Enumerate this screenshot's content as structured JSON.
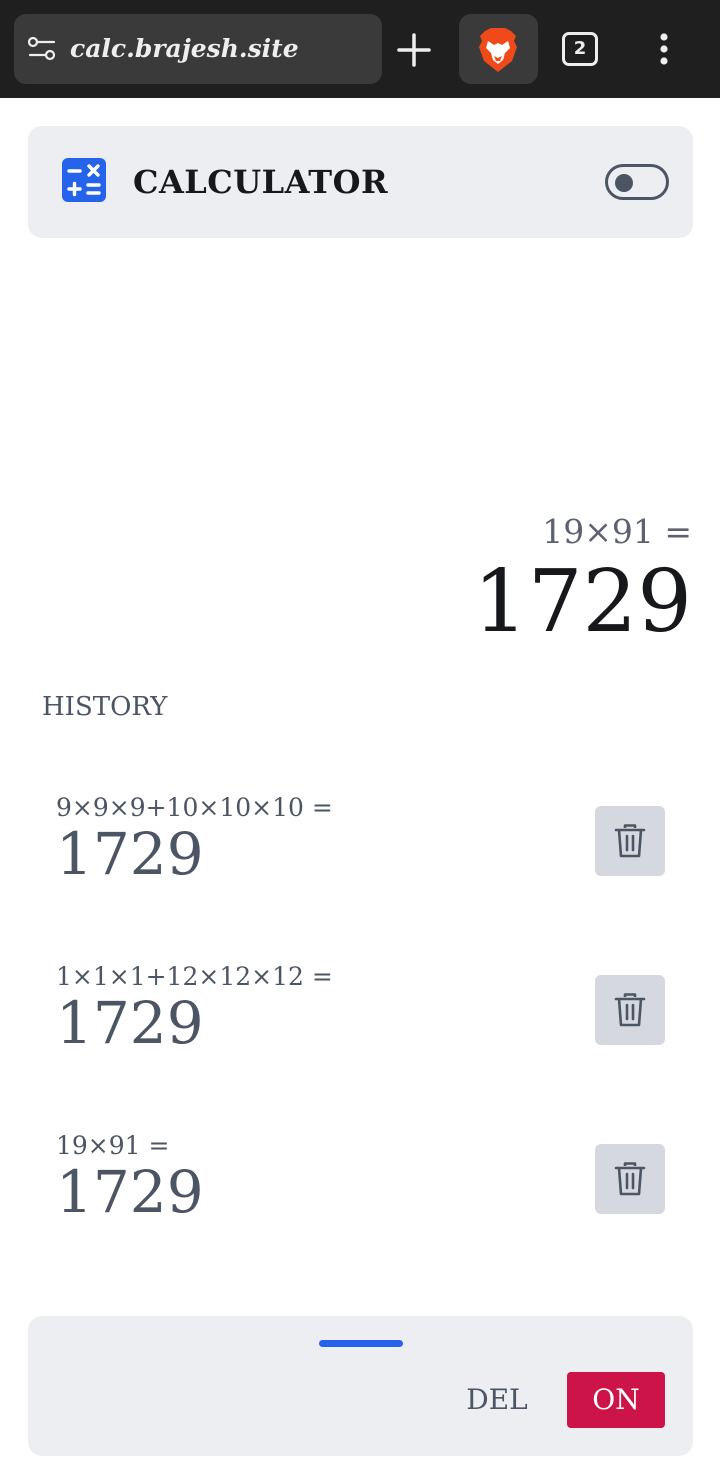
{
  "browser": {
    "url": "calc.brajesh.site",
    "tab_count": "2"
  },
  "app": {
    "title": "CALCULATOR"
  },
  "display": {
    "expression": "19×91 =",
    "result": "1729"
  },
  "history": {
    "heading": "HISTORY",
    "items": [
      {
        "expression": "9×9×9+10×10×10 =",
        "result": "1729"
      },
      {
        "expression": "1×1×1+12×12×12 =",
        "result": "1729"
      },
      {
        "expression": "19×91 =",
        "result": "1729"
      }
    ]
  },
  "controls": {
    "del_label": "DEL",
    "on_label": "ON"
  },
  "colors": {
    "accent_blue": "#2563eb",
    "on_button": "#cc1448",
    "panel_bg": "#edeef2"
  }
}
